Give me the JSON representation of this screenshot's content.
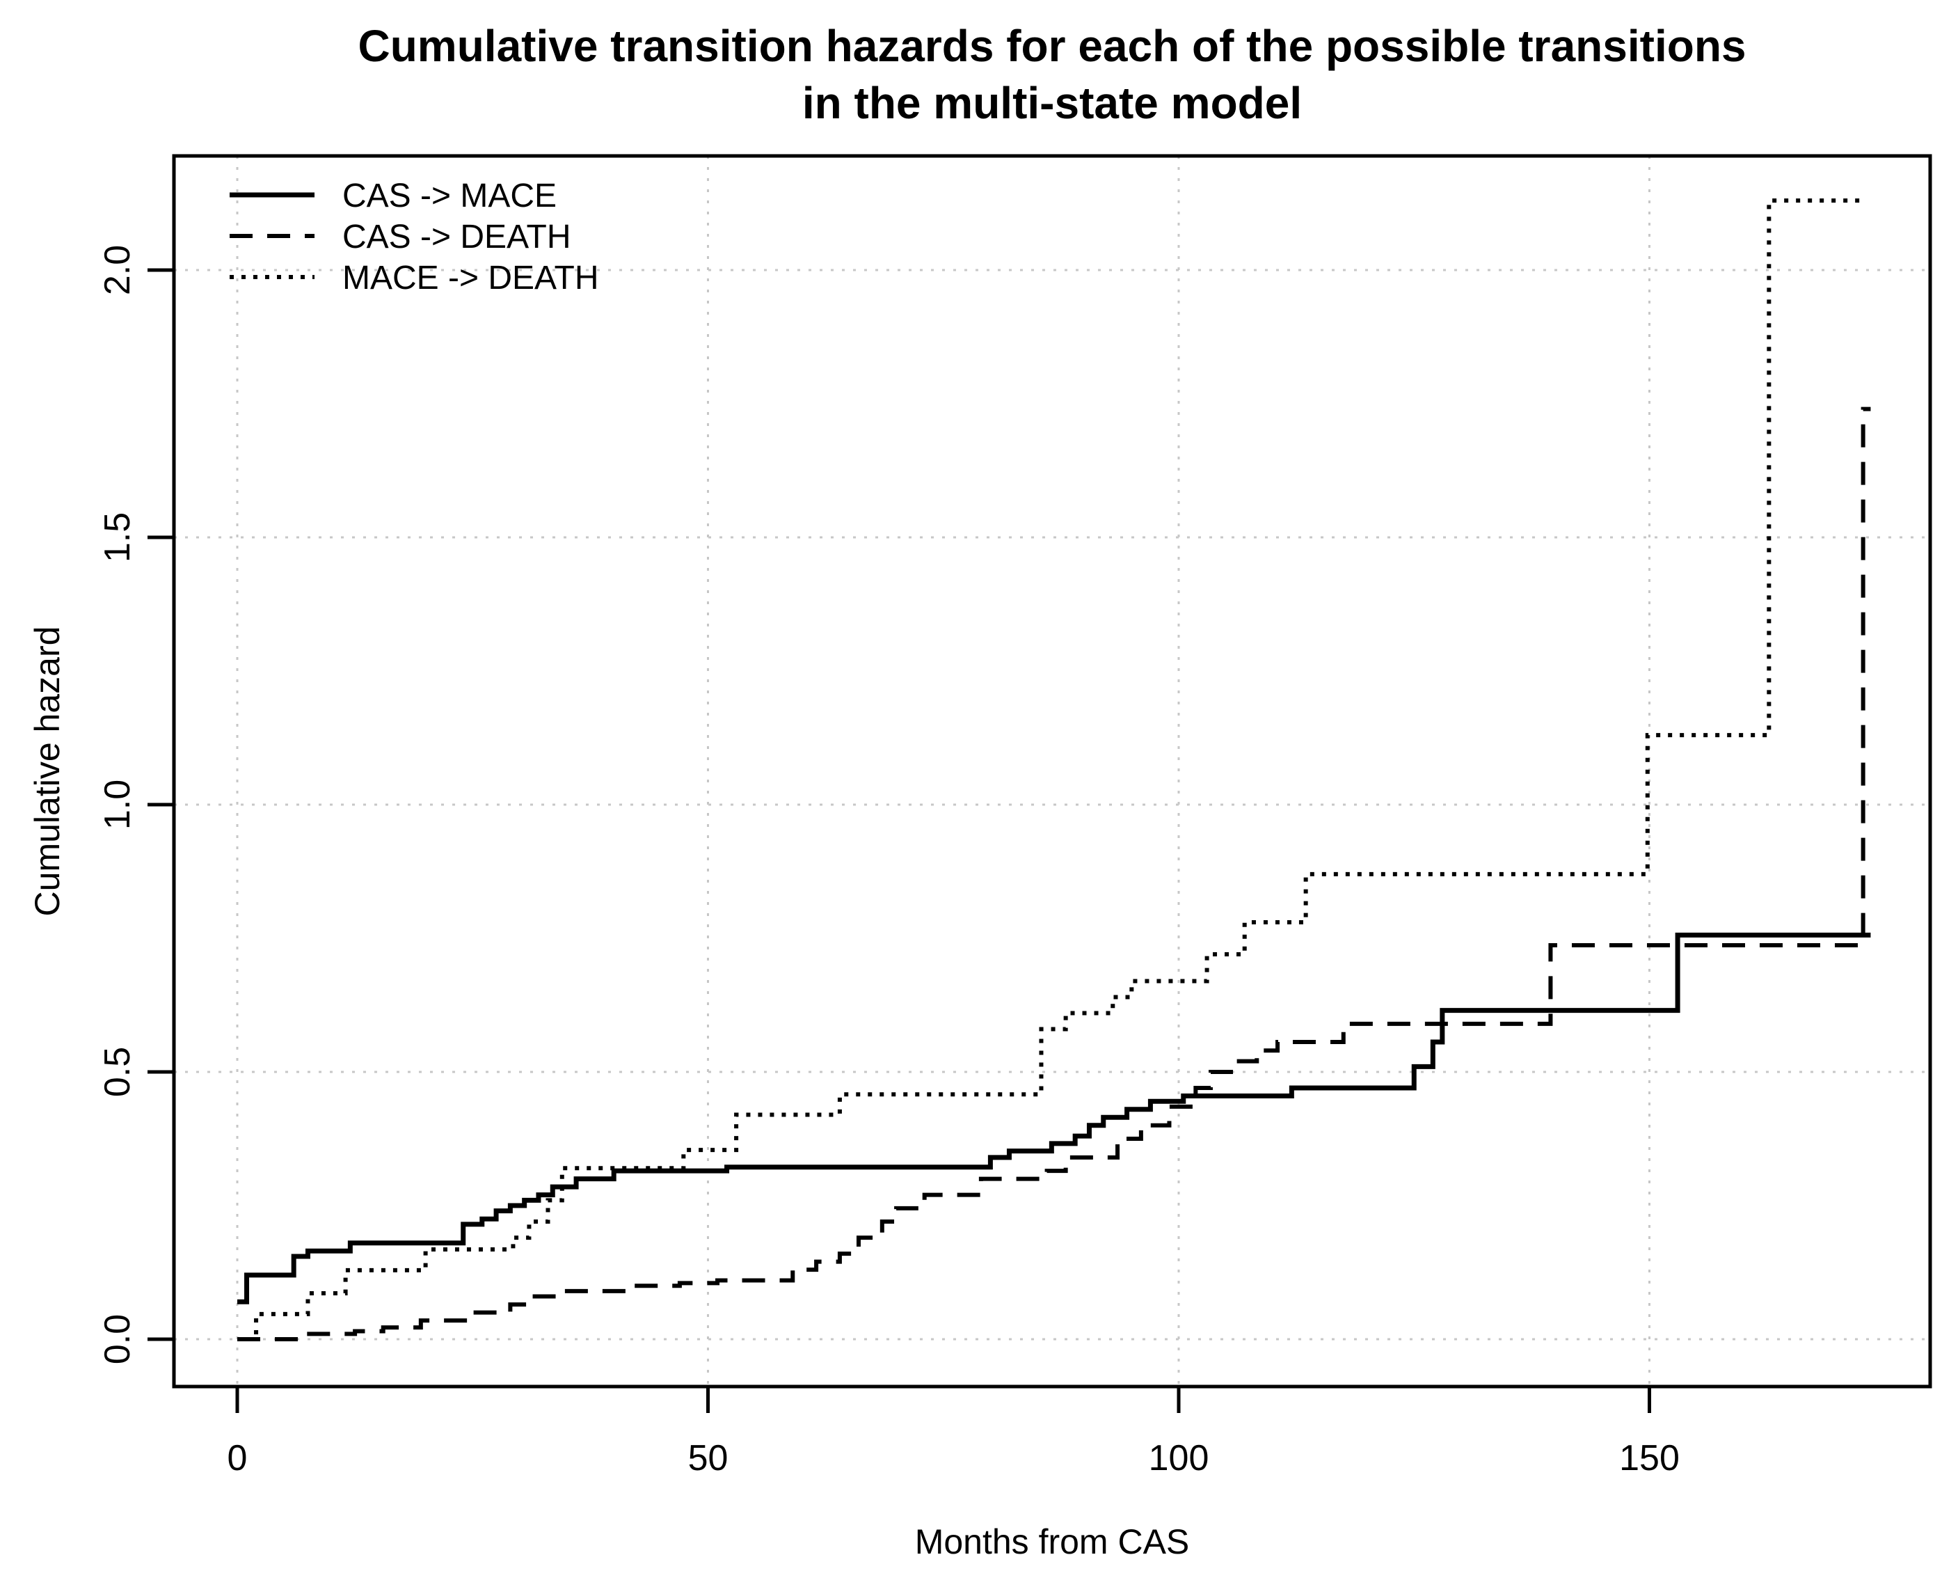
{
  "chart_data": {
    "type": "line",
    "subtype": "step-after",
    "title": "Cumulative transition hazards for each of the possible transitions in the multi-state model",
    "title_lines": [
      "Cumulative transition hazards for each of the possible transitions",
      "in the multi-state model"
    ],
    "xlabel": "Months from CAS",
    "ylabel": "Cumulative hazard",
    "x_ticks": [
      0,
      50,
      100,
      150
    ],
    "x_tick_labels": [
      "0",
      "50",
      "100",
      "150"
    ],
    "y_ticks": [
      0.0,
      0.5,
      1.0,
      1.5,
      2.0
    ],
    "y_tick_labels": [
      "0.0",
      "0.5",
      "1.0",
      "1.5",
      "2.0"
    ],
    "xlim": [
      -7,
      180
    ],
    "ylim": [
      -0.09,
      2.21
    ],
    "grid": true,
    "legend_position": "top-left",
    "colors": {
      "line": "#000000",
      "grid": "#c7c7c7",
      "background": "#ffffff",
      "text": "#000000"
    },
    "series": [
      {
        "name": "CAS -> MACE",
        "style": "solid",
        "points": [
          [
            0,
            0.07
          ],
          [
            1,
            0.12
          ],
          [
            6,
            0.155
          ],
          [
            7.5,
            0.165
          ],
          [
            12,
            0.18
          ],
          [
            24,
            0.215
          ],
          [
            26,
            0.225
          ],
          [
            27.5,
            0.24
          ],
          [
            29,
            0.25
          ],
          [
            30.5,
            0.26
          ],
          [
            32,
            0.27
          ],
          [
            33.5,
            0.285
          ],
          [
            36,
            0.3
          ],
          [
            40,
            0.315
          ],
          [
            52,
            0.322
          ],
          [
            80,
            0.34
          ],
          [
            82,
            0.352
          ],
          [
            86.5,
            0.366
          ],
          [
            89,
            0.38
          ],
          [
            90.5,
            0.4
          ],
          [
            92,
            0.415
          ],
          [
            94.5,
            0.43
          ],
          [
            97,
            0.445
          ],
          [
            100.5,
            0.455
          ],
          [
            112,
            0.47
          ],
          [
            125,
            0.51
          ],
          [
            127,
            0.556
          ],
          [
            128,
            0.615
          ],
          [
            153,
            0.756
          ],
          [
            173.5,
            0.756
          ]
        ]
      },
      {
        "name": "CAS -> DEATH",
        "style": "dashed",
        "points": [
          [
            0,
            0
          ],
          [
            6.6,
            0.01
          ],
          [
            12.5,
            0.015
          ],
          [
            15.5,
            0.022
          ],
          [
            19.5,
            0.035
          ],
          [
            24.5,
            0.05
          ],
          [
            29,
            0.065
          ],
          [
            31,
            0.08
          ],
          [
            34,
            0.09
          ],
          [
            42,
            0.1
          ],
          [
            47,
            0.105
          ],
          [
            51,
            0.11
          ],
          [
            59,
            0.13
          ],
          [
            61.5,
            0.145
          ],
          [
            64,
            0.16
          ],
          [
            66,
            0.19
          ],
          [
            68.5,
            0.22
          ],
          [
            70,
            0.245
          ],
          [
            73,
            0.27
          ],
          [
            79,
            0.3
          ],
          [
            86,
            0.315
          ],
          [
            88,
            0.34
          ],
          [
            93.5,
            0.375
          ],
          [
            96,
            0.4
          ],
          [
            99,
            0.435
          ],
          [
            101.8,
            0.47
          ],
          [
            103.4,
            0.5
          ],
          [
            105.8,
            0.52
          ],
          [
            108.3,
            0.54
          ],
          [
            110.5,
            0.556
          ],
          [
            117.5,
            0.59
          ],
          [
            139.5,
            0.737
          ],
          [
            172.7,
            1.74
          ],
          [
            173.5,
            1.74
          ]
        ]
      },
      {
        "name": "MACE -> DEATH",
        "style": "dotted",
        "points": [
          [
            0,
            0
          ],
          [
            2,
            0.047
          ],
          [
            7.5,
            0.086
          ],
          [
            11.5,
            0.129
          ],
          [
            20,
            0.168
          ],
          [
            29.3,
            0.19
          ],
          [
            31,
            0.22
          ],
          [
            33,
            0.26
          ],
          [
            34.5,
            0.32
          ],
          [
            47.4,
            0.354
          ],
          [
            53,
            0.42
          ],
          [
            64,
            0.458
          ],
          [
            85.4,
            0.58
          ],
          [
            88,
            0.61
          ],
          [
            93,
            0.64
          ],
          [
            95,
            0.67
          ],
          [
            103,
            0.72
          ],
          [
            107,
            0.78
          ],
          [
            113.5,
            0.87
          ],
          [
            149.8,
            1.13
          ],
          [
            162.7,
            2.13
          ],
          [
            172.7,
            2.13
          ]
        ]
      }
    ]
  }
}
